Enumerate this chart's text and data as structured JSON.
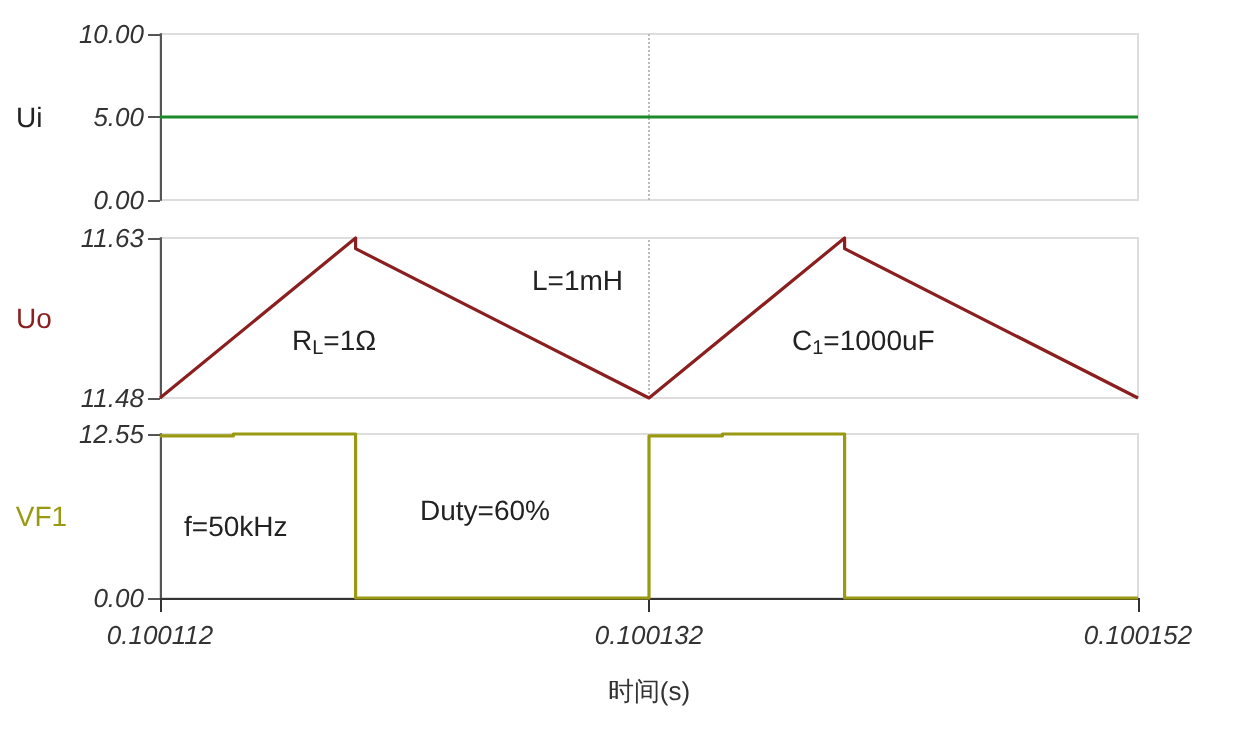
{
  "chart_data": [
    {
      "type": "line",
      "ylabel": "Ui",
      "xlim": [
        0.100112,
        0.100152
      ],
      "xticks": [
        0.100112,
        0.100132,
        0.100152
      ],
      "ylim": [
        0,
        10
      ],
      "yticks": [
        {
          "value": 0,
          "label": "0.00"
        },
        {
          "value": 5,
          "label": "5.00"
        },
        {
          "value": 10,
          "label": "10.00"
        }
      ],
      "tick_labels": "y",
      "ref_lines": [
        {
          "axis": "x",
          "value": 0.100132,
          "color": "#bbbbbb",
          "line_style": "dotted"
        }
      ],
      "x": [
        0.100112,
        0.100152
      ],
      "series": [
        {
          "color": "#1a8a2a",
          "values": [
            5,
            5
          ]
        }
      ]
    },
    {
      "type": "line",
      "ylabel": "Uo",
      "xlim": [
        0.100112,
        0.100152
      ],
      "xticks": [
        0.100112,
        0.100132,
        0.100152
      ],
      "ylim": [
        11.48,
        11.63
      ],
      "yticks": [
        11.48,
        11.63
      ],
      "tick_labels": "y",
      "ref_lines": [
        {
          "axis": "x",
          "value": 0.100132,
          "color": "#bbbbbb",
          "line_style": "dotted"
        }
      ],
      "x": [
        0.100112,
        0.10012,
        0.10012,
        0.100132,
        0.10014,
        0.10014,
        0.100152
      ],
      "annotations": [
        "R$_{L}$=1Ω",
        "L=1mH",
        "C$_{1}$=1000uF"
      ],
      "series": [
        {
          "color": "#8b1e1e",
          "values": [
            11.48,
            11.63,
            11.62,
            11.48,
            11.63,
            11.62,
            11.48
          ]
        }
      ]
    },
    {
      "type": "step",
      "ylabel": "VF1",
      "xlabel": "时间(s)",
      "xlim": [
        0.100112,
        0.100152
      ],
      "xticks": [
        0.100112,
        0.100132,
        0.100152
      ],
      "ylim": [
        0,
        12.55
      ],
      "yticks": [
        {
          "value": 0,
          "label": "0.00"
        },
        12.55
      ],
      "x": [
        0.100112,
        0.100115,
        0.10012,
        0.100132,
        0.100135,
        0.10014,
        0.100152
      ],
      "annotations": [
        "f=50kHz",
        "Duty=60%"
      ],
      "series": [
        {
          "color": "#9a9a12",
          "values": [
            12.4,
            12.55,
            0,
            12.4,
            12.55,
            0,
            0
          ]
        }
      ]
    }
  ]
}
